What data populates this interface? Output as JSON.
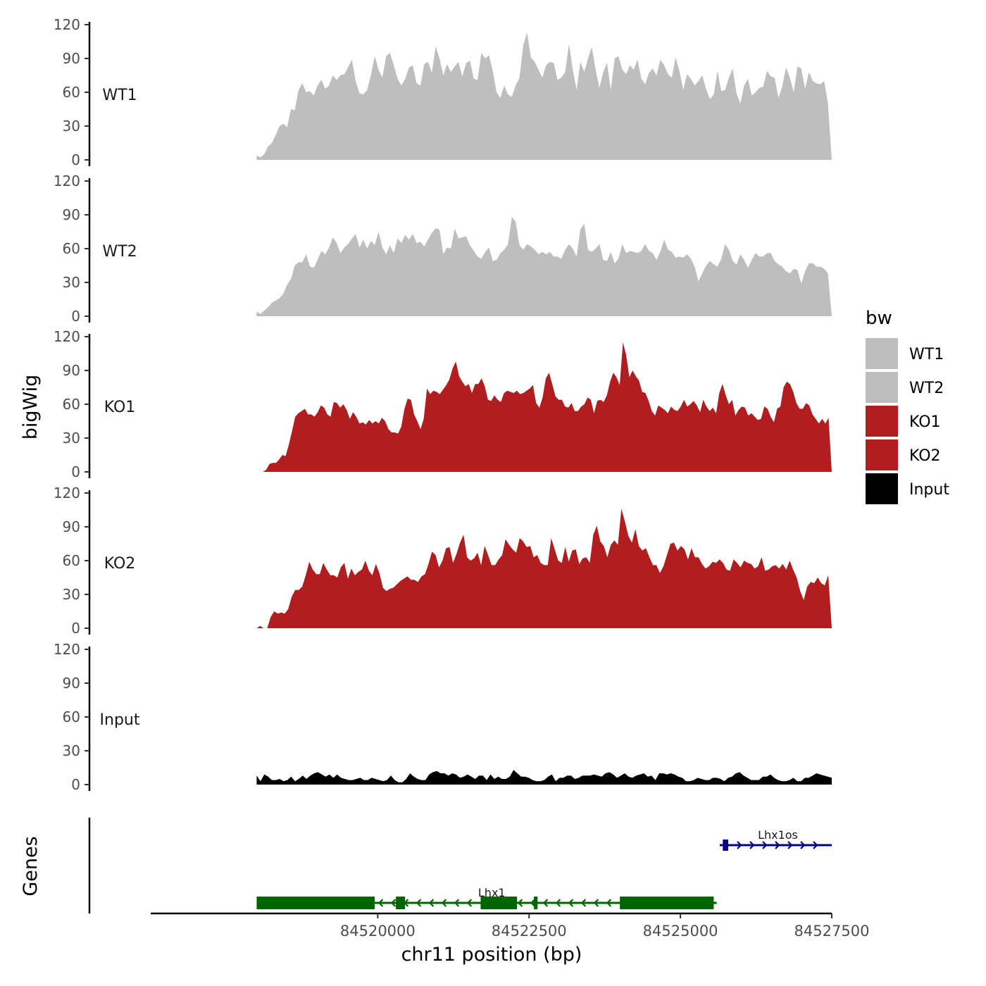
{
  "chart_data": {
    "type": "area",
    "ylabel": "bigWig",
    "genes_label": "Genes",
    "xlabel": "chr11 position (bp)",
    "xlim": [
      84516250,
      84527500
    ],
    "x_ticks": [
      84520000,
      84522500,
      84525000,
      84527500
    ],
    "x_tick_labels": [
      "84520000",
      "84522500",
      "84525000",
      "84527500"
    ],
    "y_ticks": [
      0,
      30,
      60,
      90,
      120
    ],
    "y_tick_labels": [
      "0",
      "30",
      "60",
      "90",
      "120"
    ],
    "ylim": [
      0,
      120
    ],
    "x_start": 84518000,
    "x_end": 84527500,
    "colors": {
      "WT1": "#bebebe",
      "WT2": "#bebebe",
      "KO1": "#b21e1f",
      "KO2": "#b21e1f",
      "Input": "#000000"
    },
    "legend": {
      "title": "bw",
      "position": "right",
      "entries": [
        {
          "name": "WT1",
          "color": "#bebebe"
        },
        {
          "name": "WT2",
          "color": "#bebebe"
        },
        {
          "name": "KO1",
          "color": "#b21e1f"
        },
        {
          "name": "KO2",
          "color": "#b21e1f"
        },
        {
          "name": "Input",
          "color": "#000000"
        }
      ]
    },
    "series": [
      {
        "name": "WT1",
        "values": [
          4,
          2,
          5,
          12,
          15,
          22,
          30,
          32,
          29,
          45,
          44,
          62,
          68,
          60,
          61,
          57,
          66,
          71,
          63,
          66,
          75,
          71,
          75,
          76,
          82,
          89,
          70,
          59,
          58,
          62,
          75,
          92,
          80,
          73,
          92,
          95,
          84,
          72,
          66,
          72,
          82,
          84,
          68,
          66,
          85,
          87,
          77,
          101,
          90,
          75,
          85,
          78,
          83,
          87,
          74,
          86,
          88,
          72,
          71,
          95,
          90,
          93,
          79,
          60,
          55,
          66,
          58,
          56,
          66,
          73,
          102,
          113,
          91,
          87,
          80,
          73,
          84,
          87,
          86,
          71,
          73,
          78,
          103,
          80,
          62,
          87,
          78,
          90,
          100,
          80,
          64,
          78,
          86,
          62,
          90,
          92,
          80,
          76,
          84,
          80,
          89,
          72,
          67,
          77,
          81,
          75,
          89,
          84,
          76,
          73,
          91,
          79,
          62,
          76,
          72,
          66,
          70,
          75,
          63,
          54,
          58,
          79,
          61,
          62,
          73,
          81,
          59,
          50,
          66,
          72,
          57,
          60,
          64,
          65,
          79,
          74,
          73,
          55,
          65,
          82,
          73,
          60,
          83,
          81,
          63,
          78,
          70,
          68,
          67,
          70,
          50,
          0
        ]
      },
      {
        "name": "WT2",
        "values": [
          4,
          2,
          5,
          8,
          12,
          14,
          16,
          20,
          28,
          33,
          45,
          48,
          48,
          55,
          44,
          43,
          50,
          58,
          55,
          61,
          70,
          65,
          56,
          61,
          64,
          69,
          73,
          61,
          68,
          60,
          67,
          63,
          75,
          61,
          55,
          63,
          56,
          69,
          65,
          72,
          68,
          73,
          65,
          66,
          62,
          68,
          74,
          78,
          77,
          55,
          61,
          60,
          78,
          69,
          70,
          71,
          63,
          58,
          53,
          51,
          57,
          61,
          49,
          50,
          56,
          59,
          64,
          88,
          84,
          63,
          59,
          64,
          62,
          59,
          55,
          57,
          55,
          57,
          53,
          53,
          51,
          59,
          64,
          60,
          53,
          77,
          82,
          59,
          57,
          60,
          64,
          50,
          49,
          57,
          47,
          51,
          64,
          56,
          58,
          57,
          56,
          58,
          64,
          58,
          56,
          50,
          57,
          68,
          59,
          57,
          52,
          53,
          52,
          55,
          51,
          44,
          31,
          38,
          45,
          49,
          46,
          44,
          51,
          64,
          59,
          49,
          46,
          55,
          50,
          43,
          50,
          56,
          53,
          53,
          56,
          56,
          49,
          46,
          44,
          40,
          38,
          42,
          41,
          29,
          40,
          47,
          47,
          44,
          44,
          42,
          38,
          0
        ]
      },
      {
        "name": "KO1",
        "values": [
          0,
          0,
          0,
          2,
          7,
          8,
          8,
          11,
          15,
          14,
          24,
          36,
          49,
          52,
          54,
          56,
          51,
          51,
          49,
          53,
          59,
          57,
          51,
          49,
          62,
          61,
          57,
          60,
          55,
          47,
          53,
          49,
          43,
          44,
          42,
          46,
          43,
          45,
          43,
          48,
          45,
          38,
          35,
          35,
          34,
          40,
          56,
          65,
          64,
          51,
          45,
          38,
          47,
          74,
          69,
          72,
          71,
          69,
          73,
          77,
          82,
          92,
          98,
          85,
          80,
          76,
          78,
          70,
          78,
          78,
          83,
          76,
          64,
          63,
          68,
          64,
          62,
          70,
          72,
          71,
          70,
          72,
          69,
          70,
          72,
          74,
          77,
          61,
          57,
          66,
          83,
          88,
          78,
          67,
          64,
          64,
          58,
          57,
          61,
          54,
          54,
          58,
          60,
          66,
          64,
          52,
          63,
          64,
          62,
          68,
          80,
          88,
          84,
          77,
          115,
          104,
          84,
          90,
          85,
          81,
          71,
          70,
          63,
          54,
          50,
          59,
          57,
          55,
          52,
          58,
          55,
          54,
          58,
          64,
          58,
          60,
          63,
          59,
          53,
          64,
          58,
          54,
          57,
          52,
          70,
          78,
          68,
          60,
          64,
          50,
          55,
          58,
          57,
          50,
          52,
          49,
          46,
          47,
          58,
          56,
          49,
          44,
          56,
          58,
          75,
          80,
          78,
          71,
          61,
          56,
          56,
          61,
          59,
          51,
          47,
          43,
          47,
          43,
          48,
          0
        ]
      },
      {
        "name": "KO2",
        "values": [
          0,
          2,
          0,
          0,
          10,
          15,
          13,
          14,
          13,
          17,
          28,
          34,
          34,
          37,
          47,
          59,
          52,
          48,
          48,
          58,
          52,
          47,
          47,
          45,
          54,
          58,
          44,
          53,
          47,
          50,
          52,
          60,
          51,
          47,
          57,
          49,
          36,
          33,
          35,
          36,
          39,
          42,
          44,
          46,
          43,
          43,
          41,
          46,
          48,
          57,
          68,
          65,
          54,
          60,
          71,
          72,
          58,
          66,
          76,
          83,
          63,
          60,
          62,
          67,
          56,
          73,
          65,
          56,
          56,
          61,
          65,
          79,
          74,
          70,
          67,
          80,
          77,
          72,
          73,
          63,
          65,
          58,
          56,
          56,
          80,
          70,
          60,
          58,
          72,
          59,
          69,
          70,
          57,
          62,
          63,
          58,
          83,
          91,
          77,
          73,
          63,
          74,
          78,
          74,
          106,
          95,
          82,
          76,
          88,
          73,
          69,
          71,
          63,
          56,
          56,
          49,
          55,
          65,
          75,
          76,
          69,
          73,
          70,
          61,
          71,
          63,
          63,
          57,
          53,
          55,
          59,
          58,
          61,
          58,
          52,
          51,
          61,
          58,
          54,
          60,
          58,
          57,
          53,
          55,
          63,
          51,
          52,
          55,
          56,
          53,
          57,
          52,
          60,
          52,
          45,
          33,
          25,
          37,
          41,
          40,
          45,
          40,
          38,
          47,
          0
        ]
      },
      {
        "name": "Input",
        "values": [
          8,
          3,
          9,
          7,
          4,
          4,
          5,
          3,
          4,
          7,
          3,
          5,
          8,
          5,
          8,
          10,
          11,
          9,
          7,
          9,
          6,
          9,
          6,
          5,
          4,
          4,
          5,
          6,
          4,
          4,
          6,
          5,
          4,
          3,
          4,
          8,
          4,
          2,
          2,
          5,
          10,
          7,
          5,
          4,
          4,
          9,
          11,
          12,
          10,
          10,
          8,
          10,
          9,
          6,
          7,
          9,
          7,
          5,
          8,
          8,
          4,
          9,
          5,
          7,
          5,
          5,
          7,
          13,
          10,
          7,
          7,
          6,
          4,
          3,
          3,
          4,
          7,
          9,
          3,
          6,
          6,
          8,
          8,
          5,
          6,
          8,
          8,
          8,
          9,
          8,
          7,
          10,
          11,
          9,
          6,
          8,
          10,
          7,
          6,
          8,
          9,
          10,
          7,
          8,
          4,
          10,
          10,
          9,
          10,
          9,
          7,
          6,
          3,
          3,
          4,
          6,
          5,
          4,
          4,
          6,
          6,
          5,
          3,
          6,
          7,
          10,
          11,
          8,
          6,
          4,
          4,
          4,
          7,
          7,
          9,
          6,
          4,
          3,
          3,
          4,
          6,
          3,
          3,
          6,
          6,
          8,
          10,
          9,
          8,
          7,
          6
        ]
      }
    ],
    "genes": [
      {
        "name": "Lhx1",
        "strand": "-",
        "color": "#006400",
        "start": 84518000,
        "end": 84525600,
        "exons": [
          [
            84518000,
            84519950
          ],
          [
            84520300,
            84520450
          ],
          [
            84521700,
            84522300
          ],
          [
            84522580,
            84522640
          ],
          [
            84524000,
            84525550
          ]
        ]
      },
      {
        "name": "Lhx1os",
        "strand": "+",
        "color": "#00008b",
        "start": 84525650,
        "end": 84527500,
        "exons": [
          [
            84525700,
            84525790
          ]
        ]
      }
    ]
  }
}
